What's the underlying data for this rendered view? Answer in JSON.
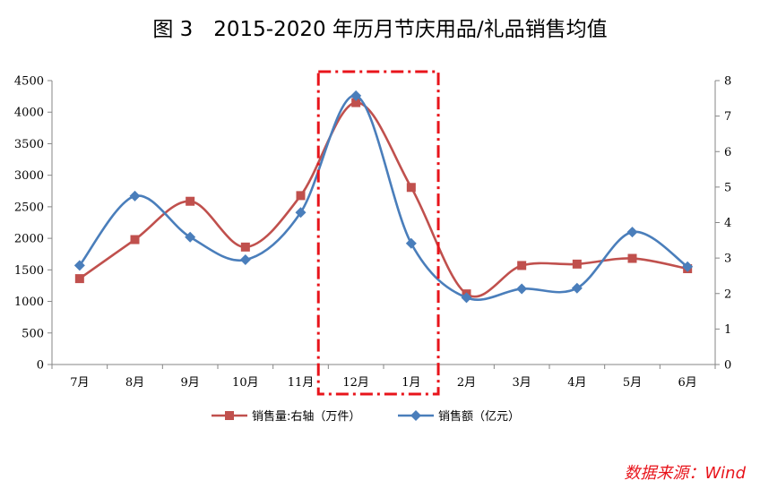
{
  "chart_data": {
    "type": "line",
    "title": "图 3　2015-2020 年历月节庆用品/礼品销售均值",
    "categories": [
      "7月",
      "8月",
      "9月",
      "10月",
      "11月",
      "12月",
      "1月",
      "2月",
      "3月",
      "4月",
      "5月",
      "6月"
    ],
    "series": [
      {
        "name": "销售量:右轴（万件）",
        "axis": "right",
        "color": "#c0504d",
        "marker": "square",
        "values": [
          2.42,
          3.52,
          4.6,
          3.31,
          4.76,
          7.38,
          4.99,
          1.99,
          2.79,
          2.83,
          2.99,
          2.7
        ]
      },
      {
        "name": "销售额（亿元）",
        "axis": "left",
        "color": "#4a7ebb",
        "marker": "diamond",
        "values": [
          1570,
          2670,
          2020,
          1660,
          2410,
          4260,
          1920,
          1060,
          1200,
          1210,
          2100,
          1550
        ]
      }
    ],
    "yleft": {
      "ticks": [
        0,
        500,
        1000,
        1500,
        2000,
        2500,
        3000,
        3500,
        4000,
        4500
      ],
      "ylim": [
        0,
        4500
      ]
    },
    "yright": {
      "ticks": [
        0,
        1,
        2,
        3,
        4,
        5,
        6,
        7,
        8
      ],
      "ylim": [
        0,
        8
      ]
    },
    "legend_position": "bottom",
    "highlight": {
      "categories": [
        "12月",
        "1月"
      ],
      "color": "#e8141b"
    }
  },
  "source": "数据来源：Wind"
}
